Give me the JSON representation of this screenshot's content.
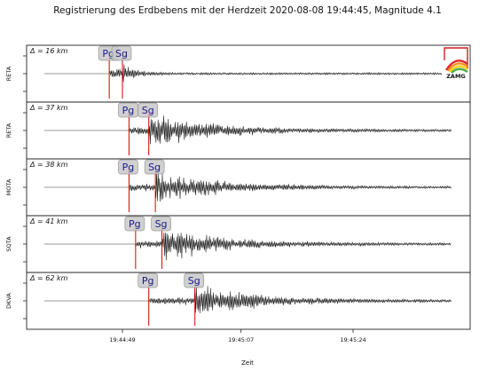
{
  "chart_data": {
    "type": "line",
    "title": "Registrierung des Erdbebens mit der Herdzeit 2020-08-08 19:44:45, Magnitude 4.1",
    "xlabel": "Zeit",
    "x_ticks": [
      "19:44:49",
      "19:45:07",
      "19:45:24"
    ],
    "logo_text": "ZAMG",
    "colors": {
      "trace": "#111111",
      "pick_line": "#d40000",
      "pick_box_fill": "#c8c8c8",
      "pick_label": "#1a1a8c",
      "baseline": "#777777"
    },
    "series": [
      {
        "name": "RETA",
        "distance_label": "Δ = 16 km",
        "picks": [
          {
            "phase": "Pg",
            "time": "19:44:47"
          },
          {
            "phase": "Sg",
            "time": "19:44:49"
          }
        ]
      },
      {
        "name": "RETA",
        "distance_label": "Δ = 37 km",
        "picks": [
          {
            "phase": "Pg",
            "time": "19:44:50"
          },
          {
            "phase": "Sg",
            "time": "19:44:53"
          }
        ]
      },
      {
        "name": "MOTA",
        "distance_label": "Δ = 38 km",
        "picks": [
          {
            "phase": "Pg",
            "time": "19:44:50"
          },
          {
            "phase": "Sg",
            "time": "19:44:54"
          }
        ]
      },
      {
        "name": "SQTA",
        "distance_label": "Δ = 41 km",
        "picks": [
          {
            "phase": "Pg",
            "time": "19:44:51"
          },
          {
            "phase": "Sg",
            "time": "19:44:55"
          }
        ]
      },
      {
        "name": "DKVA",
        "distance_label": "Δ = 62 km",
        "picks": [
          {
            "phase": "Pg",
            "time": "19:44:53"
          },
          {
            "phase": "Sg",
            "time": "19:45:00"
          }
        ]
      }
    ]
  }
}
